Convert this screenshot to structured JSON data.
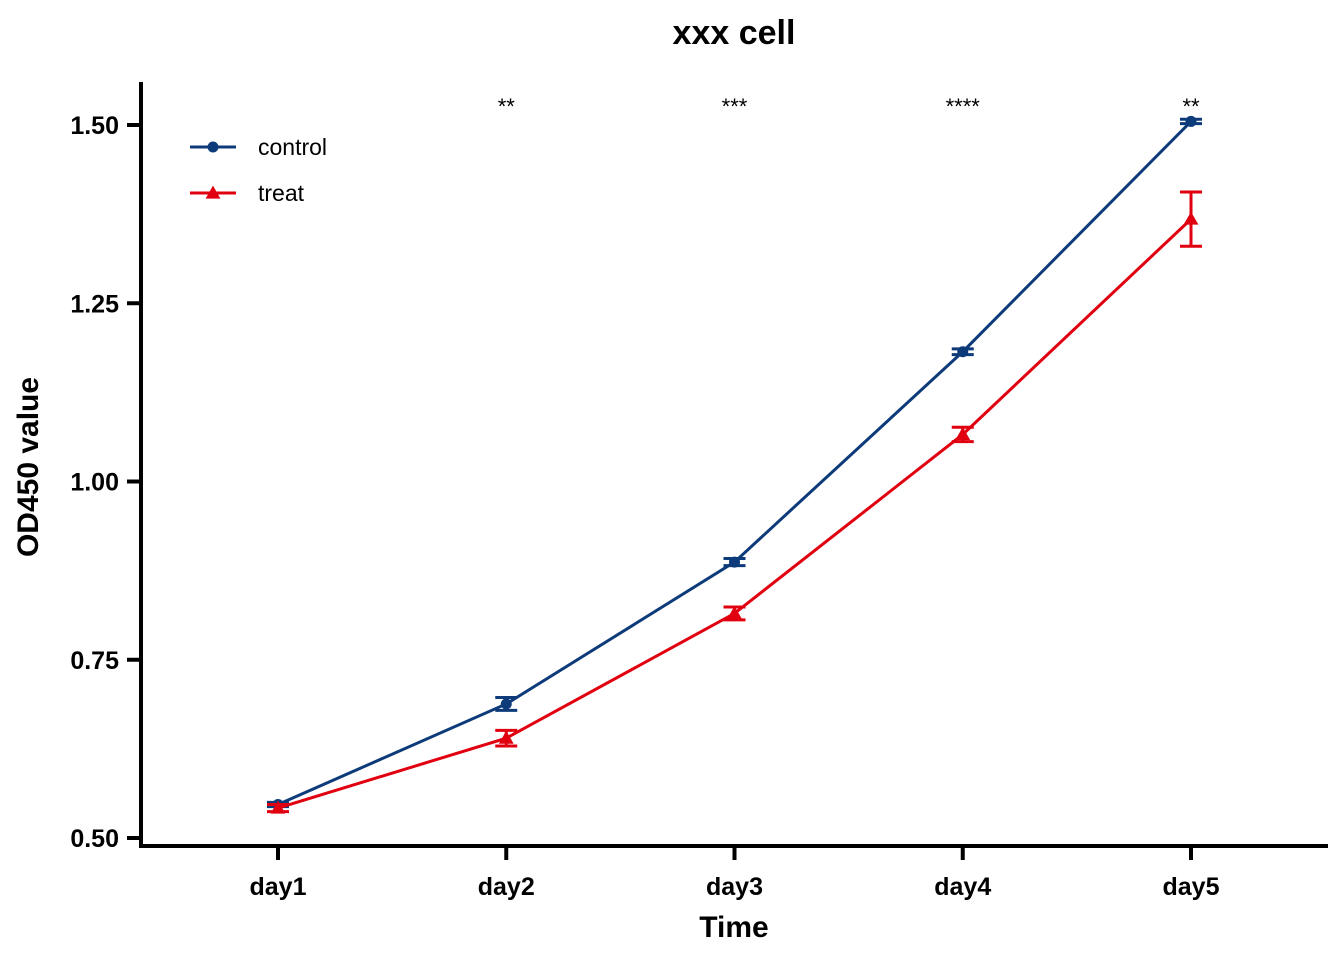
{
  "chart_data": {
    "type": "line",
    "title": "xxx cell",
    "xlabel": "Time",
    "ylabel": "OD450 value",
    "categories": [
      "day1",
      "day2",
      "day3",
      "day4",
      "day5"
    ],
    "ylim": [
      0.5,
      1.5
    ],
    "yticks": [
      "0.50",
      "0.75",
      "1.00",
      "1.25",
      "1.50"
    ],
    "series": [
      {
        "name": "control",
        "color": "#0d3b7a",
        "marker": "circle",
        "values": [
          0.547,
          0.688,
          0.887,
          1.182,
          1.505
        ],
        "errors": [
          0.003,
          0.009,
          0.005,
          0.004,
          0.003
        ]
      },
      {
        "name": "treat",
        "color": "#e0000f",
        "marker": "triangle",
        "values": [
          0.542,
          0.64,
          0.815,
          1.066,
          1.368
        ],
        "errors": [
          0.005,
          0.011,
          0.009,
          0.01,
          0.038
        ]
      }
    ],
    "annotations": [
      "",
      "**",
      "***",
      "****",
      "**"
    ],
    "legend_position": "top-left",
    "grid": false
  }
}
